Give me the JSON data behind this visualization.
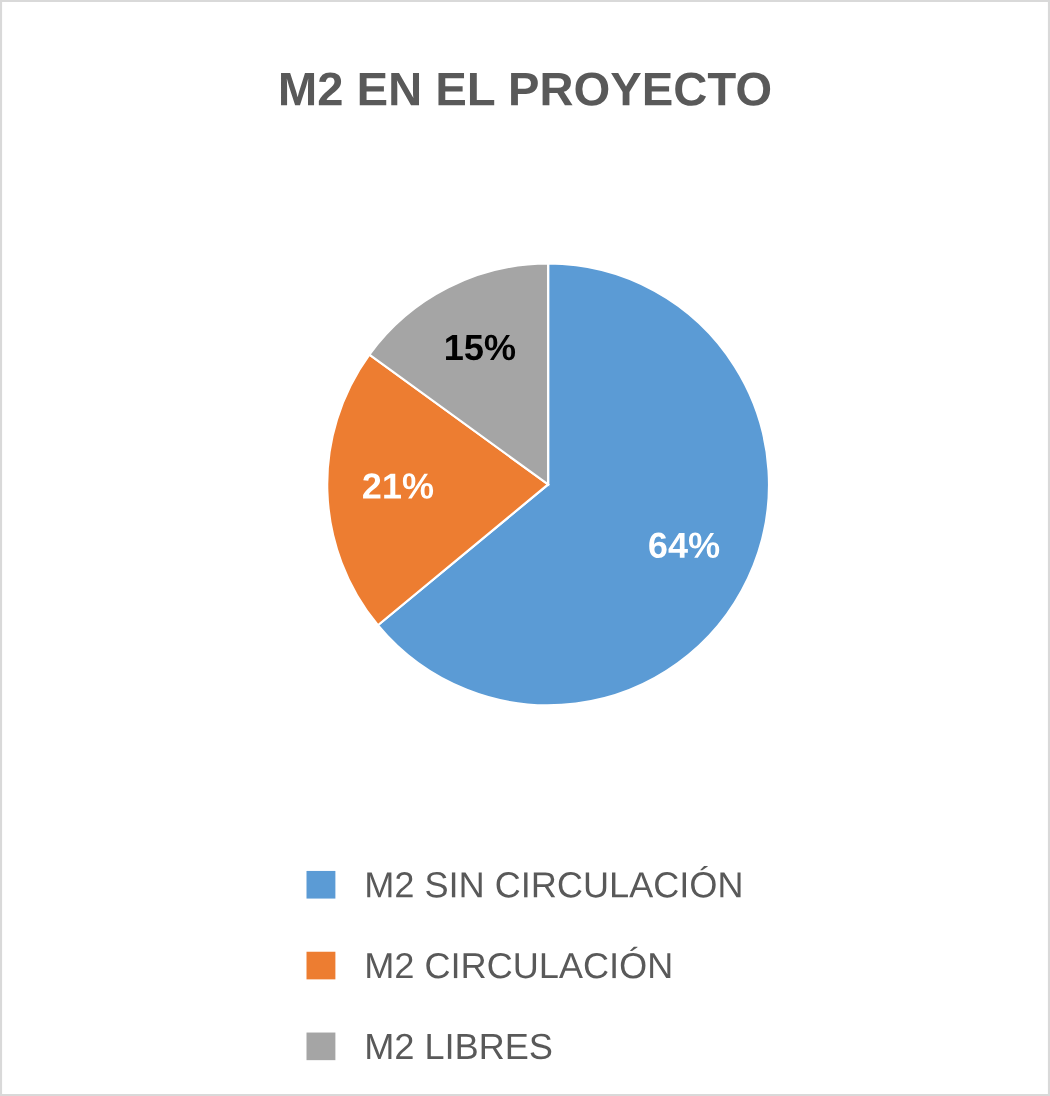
{
  "chart_data": {
    "type": "pie",
    "title": "M2 EN EL PROYECTO",
    "categories": [
      "M2 SIN CIRCULACIÓN",
      "M2 CIRCULACIÓN",
      "M2 LIBRES"
    ],
    "values": [
      64,
      21,
      15
    ],
    "colors": [
      "#5b9bd5",
      "#ed7d31",
      "#a5a5a5"
    ],
    "value_labels": [
      "64%",
      "21%",
      "15%"
    ],
    "legend": "bottom"
  }
}
